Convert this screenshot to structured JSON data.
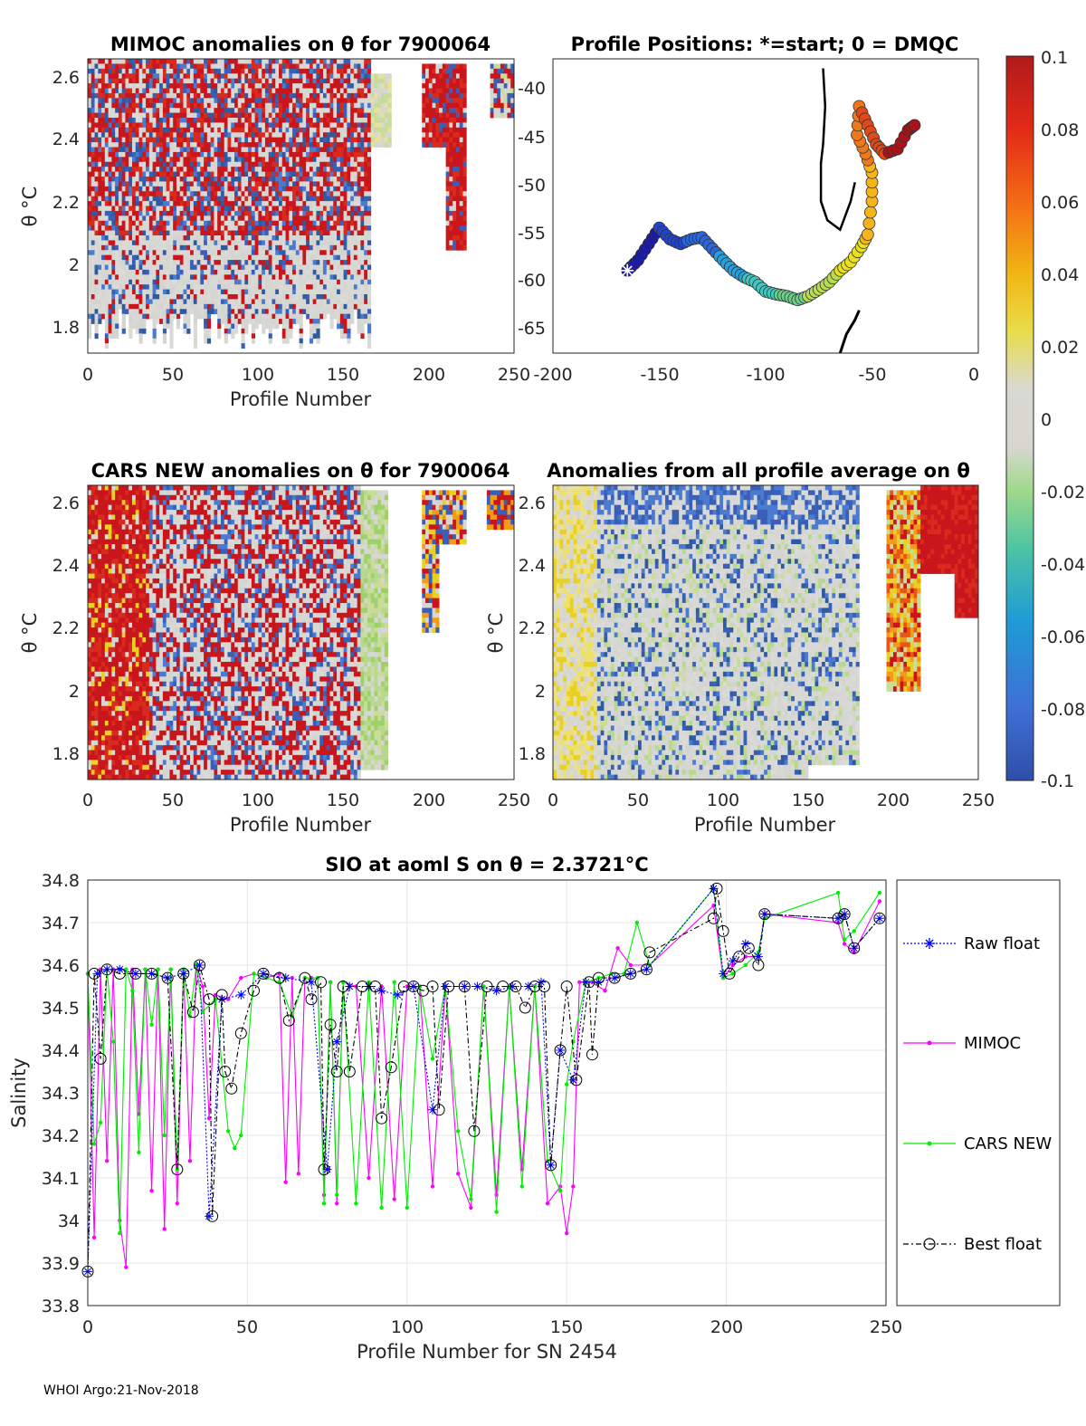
{
  "footer": "WHOI Argo:21-Nov-2018",
  "colors": {
    "raw": "#0000ff",
    "mimoc": "#ff00ff",
    "cars": "#00ee00",
    "best": "#000000",
    "grid": "#e6e6e6"
  },
  "chart_data": [
    {
      "id": "mimoc",
      "type": "heatmap",
      "title": "MIMOC anomalies on θ  for 7900064",
      "xlabel": "Profile Number",
      "ylabel": "θ °C",
      "xlim": [
        0,
        250
      ],
      "ylim": [
        1.7,
        2.65
      ],
      "xticks": [
        "0",
        "50",
        "100",
        "150",
        "200",
        "250"
      ],
      "yticks": [
        "1.8",
        "2",
        "2.2",
        "2.4",
        "2.6"
      ]
    },
    {
      "id": "positions",
      "type": "scatter",
      "title": "Profile Positions: *=start; 0 = DMQC",
      "xlim": [
        -200,
        0
      ],
      "ylim": [
        -68,
        -37
      ],
      "xticks": [
        "-200",
        "-150",
        "-100",
        "-50",
        "0"
      ],
      "yticks": [
        "-40",
        "-45",
        "-50",
        "-55",
        "-60",
        "-65"
      ],
      "track": [
        [
          -165,
          -59.3
        ],
        [
          -160,
          -58.2
        ],
        [
          -155,
          -56.5
        ],
        [
          -150,
          -54.8
        ],
        [
          -145,
          -56
        ],
        [
          -140,
          -56.5
        ],
        [
          -135,
          -56
        ],
        [
          -130,
          -55.8
        ],
        [
          -125,
          -57
        ],
        [
          -120,
          -58.2
        ],
        [
          -115,
          -59.3
        ],
        [
          -110,
          -60
        ],
        [
          -105,
          -60.5
        ],
        [
          -100,
          -61.5
        ],
        [
          -95,
          -61.8
        ],
        [
          -90,
          -62
        ],
        [
          -85,
          -62.4
        ],
        [
          -80,
          -62
        ],
        [
          -75,
          -61.3
        ],
        [
          -70,
          -60.5
        ],
        [
          -65,
          -59.3
        ],
        [
          -60,
          -58.4
        ],
        [
          -55,
          -56.8
        ],
        [
          -52,
          -55.5
        ],
        [
          -50,
          -52
        ],
        [
          -50,
          -49
        ],
        [
          -53,
          -47
        ],
        [
          -57,
          -45
        ],
        [
          -56,
          -42
        ],
        [
          -52,
          -44
        ],
        [
          -48,
          -46
        ],
        [
          -44,
          -47
        ],
        [
          -38,
          -46.5
        ],
        [
          -33,
          -44.5
        ],
        [
          -30,
          -44
        ]
      ]
    },
    {
      "id": "colorbar",
      "type": "heatmap",
      "ticks": [
        "0.1",
        "0.08",
        "0.06",
        "0.04",
        "0.02",
        "0",
        "-0.02",
        "-0.04",
        "-0.06",
        "-0.08",
        "-0.1"
      ],
      "range": [
        -0.1,
        0.1
      ]
    },
    {
      "id": "cars",
      "type": "heatmap",
      "title": "CARS NEW anomalies on θ for 7900064",
      "xlabel": "Profile Number",
      "ylabel": "θ °C",
      "xlim": [
        0,
        250
      ],
      "ylim": [
        1.7,
        2.65
      ],
      "xticks": [
        "0",
        "50",
        "100",
        "150",
        "200",
        "250"
      ],
      "yticks": [
        "1.8",
        "2",
        "2.2",
        "2.4",
        "2.6"
      ]
    },
    {
      "id": "allavg",
      "type": "heatmap",
      "title": "Anomalies from all profile average on θ",
      "xlabel": "Profile Number",
      "ylabel": "θ °C",
      "xlim": [
        0,
        250
      ],
      "ylim": [
        1.7,
        2.65
      ],
      "xticks": [
        "0",
        "50",
        "100",
        "150",
        "200",
        "250"
      ],
      "yticks": [
        "1.8",
        "2",
        "2.2",
        "2.4",
        "2.6"
      ]
    },
    {
      "id": "salinity",
      "type": "line",
      "title": "SIO at aoml S on θ = 2.3721°C",
      "xlabel": "Profile Number for SN 2454",
      "ylabel": "Salinity",
      "xlim": [
        0,
        250
      ],
      "ylim": [
        33.8,
        34.8
      ],
      "xticks": [
        "0",
        "50",
        "100",
        "150",
        "200",
        "250"
      ],
      "yticks": [
        "34.8",
        "34.7",
        "34.6",
        "34.5",
        "34.4",
        "34.3",
        "34.2",
        "34.1",
        "34",
        "33.9",
        "33.8"
      ],
      "legend": [
        "Raw float",
        "MIMOC",
        "CARS NEW",
        "Best float"
      ],
      "series": [
        {
          "name": "Raw float",
          "x": [
            0,
            3,
            6,
            10,
            15,
            20,
            25,
            30,
            35,
            38,
            42,
            48,
            55,
            62,
            70,
            75,
            78,
            82,
            88,
            92,
            97,
            102,
            108,
            112,
            118,
            122,
            128,
            133,
            138,
            142,
            145,
            148,
            152,
            156,
            160,
            165,
            170,
            175,
            196,
            199,
            202,
            206,
            210,
            212,
            235,
            237,
            240,
            248
          ],
          "y": [
            33.88,
            34.58,
            34.59,
            34.59,
            34.58,
            34.58,
            34.57,
            34.58,
            34.6,
            34.01,
            34.52,
            34.53,
            34.58,
            34.57,
            34.56,
            34.12,
            34.42,
            34.55,
            34.55,
            34.54,
            34.53,
            34.55,
            34.26,
            34.55,
            34.55,
            34.55,
            34.54,
            34.55,
            34.55,
            34.56,
            34.13,
            34.4,
            34.33,
            34.56,
            34.56,
            34.57,
            34.58,
            34.59,
            34.78,
            34.58,
            34.61,
            34.65,
            34.62,
            34.72,
            34.71,
            34.72,
            34.64,
            34.71
          ]
        },
        {
          "name": "MIMOC",
          "x": [
            0,
            2,
            4,
            6,
            8,
            10,
            12,
            14,
            16,
            18,
            20,
            22,
            24,
            26,
            28,
            30,
            32,
            34,
            36,
            38,
            40,
            44,
            48,
            52,
            56,
            60,
            62,
            64,
            66,
            68,
            70,
            72,
            74,
            76,
            78,
            80,
            84,
            88,
            92,
            96,
            100,
            104,
            108,
            112,
            116,
            120,
            124,
            128,
            132,
            136,
            140,
            144,
            148,
            150,
            152,
            154,
            158,
            162,
            166,
            170,
            176,
            196,
            199,
            202,
            206,
            210,
            212,
            235,
            237,
            240,
            248
          ],
          "y": [
            34.58,
            33.96,
            34.59,
            34.14,
            34.59,
            34.0,
            33.89,
            34.59,
            34.25,
            34.59,
            34.07,
            34.59,
            33.98,
            34.59,
            34.04,
            34.59,
            34.14,
            34.6,
            34.55,
            34.24,
            34.53,
            34.52,
            34.57,
            34.58,
            34.57,
            34.58,
            34.09,
            34.57,
            34.11,
            34.57,
            34.57,
            34.57,
            34.06,
            34.56,
            34.04,
            34.56,
            34.55,
            34.1,
            34.55,
            34.05,
            34.55,
            34.55,
            34.08,
            34.55,
            34.11,
            34.03,
            34.55,
            34.06,
            34.55,
            34.12,
            34.55,
            34.04,
            34.08,
            33.97,
            34.08,
            34.56,
            34.56,
            34.54,
            34.64,
            34.6,
            34.6,
            34.74,
            34.57,
            34.6,
            34.62,
            34.62,
            34.72,
            34.7,
            34.65,
            34.63,
            34.75
          ]
        },
        {
          "name": "CARS NEW",
          "x": [
            0,
            2,
            4,
            6,
            8,
            10,
            12,
            14,
            16,
            18,
            20,
            22,
            24,
            26,
            28,
            30,
            32,
            34,
            36,
            40,
            44,
            46,
            48,
            52,
            56,
            60,
            64,
            68,
            72,
            74,
            76,
            78,
            80,
            84,
            88,
            92,
            96,
            100,
            104,
            108,
            112,
            116,
            120,
            124,
            128,
            132,
            136,
            140,
            144,
            148,
            150,
            152,
            156,
            160,
            164,
            168,
            172,
            176,
            196,
            199,
            202,
            206,
            210,
            212,
            235,
            237,
            240,
            248
          ],
          "y": [
            34.58,
            34.18,
            34.23,
            34.59,
            34.42,
            33.97,
            34.59,
            34.54,
            34.16,
            34.59,
            34.46,
            34.59,
            34.2,
            34.59,
            34.12,
            34.59,
            34.48,
            34.6,
            34.49,
            34.52,
            34.21,
            34.17,
            34.2,
            34.58,
            34.57,
            34.56,
            34.48,
            34.57,
            34.57,
            34.04,
            34.56,
            34.06,
            34.56,
            34.04,
            34.56,
            34.03,
            34.56,
            34.03,
            34.55,
            34.38,
            34.55,
            34.21,
            34.05,
            34.55,
            34.02,
            34.55,
            34.08,
            34.55,
            34.14,
            34.07,
            34.32,
            34.42,
            34.56,
            34.57,
            34.58,
            34.58,
            34.7,
            34.6,
            34.78,
            34.57,
            34.58,
            34.6,
            34.63,
            34.71,
            34.77,
            34.66,
            34.68,
            34.77
          ]
        },
        {
          "name": "Best float",
          "x": [
            0,
            2,
            4,
            6,
            10,
            15,
            20,
            25,
            28,
            30,
            33,
            35,
            38,
            39,
            42,
            43,
            45,
            48,
            52,
            55,
            60,
            63,
            68,
            70,
            73,
            74,
            76,
            78,
            80,
            82,
            86,
            90,
            92,
            95,
            99,
            102,
            105,
            108,
            110,
            113,
            118,
            121,
            125,
            130,
            134,
            137,
            140,
            143,
            145,
            148,
            150,
            153,
            157,
            158,
            160,
            165,
            170,
            175,
            176,
            196,
            197,
            199,
            201,
            204,
            207,
            210,
            212,
            235,
            237,
            240,
            248
          ],
          "y": [
            33.88,
            34.58,
            34.38,
            34.59,
            34.58,
            34.58,
            34.58,
            34.57,
            34.12,
            34.58,
            34.49,
            34.6,
            34.52,
            34.01,
            34.53,
            34.35,
            34.31,
            34.44,
            34.54,
            34.58,
            34.57,
            34.47,
            34.57,
            34.52,
            34.56,
            34.12,
            34.46,
            34.35,
            34.55,
            34.35,
            34.55,
            34.55,
            34.24,
            34.36,
            34.55,
            34.55,
            34.54,
            34.55,
            34.26,
            34.55,
            34.55,
            34.21,
            34.55,
            34.55,
            34.55,
            34.5,
            34.55,
            34.55,
            34.13,
            34.4,
            34.55,
            34.33,
            34.56,
            34.39,
            34.57,
            34.57,
            34.58,
            34.59,
            34.63,
            34.71,
            34.78,
            34.68,
            34.58,
            34.62,
            34.64,
            34.6,
            34.72,
            34.71,
            34.72,
            34.64,
            34.71
          ]
        }
      ]
    }
  ]
}
